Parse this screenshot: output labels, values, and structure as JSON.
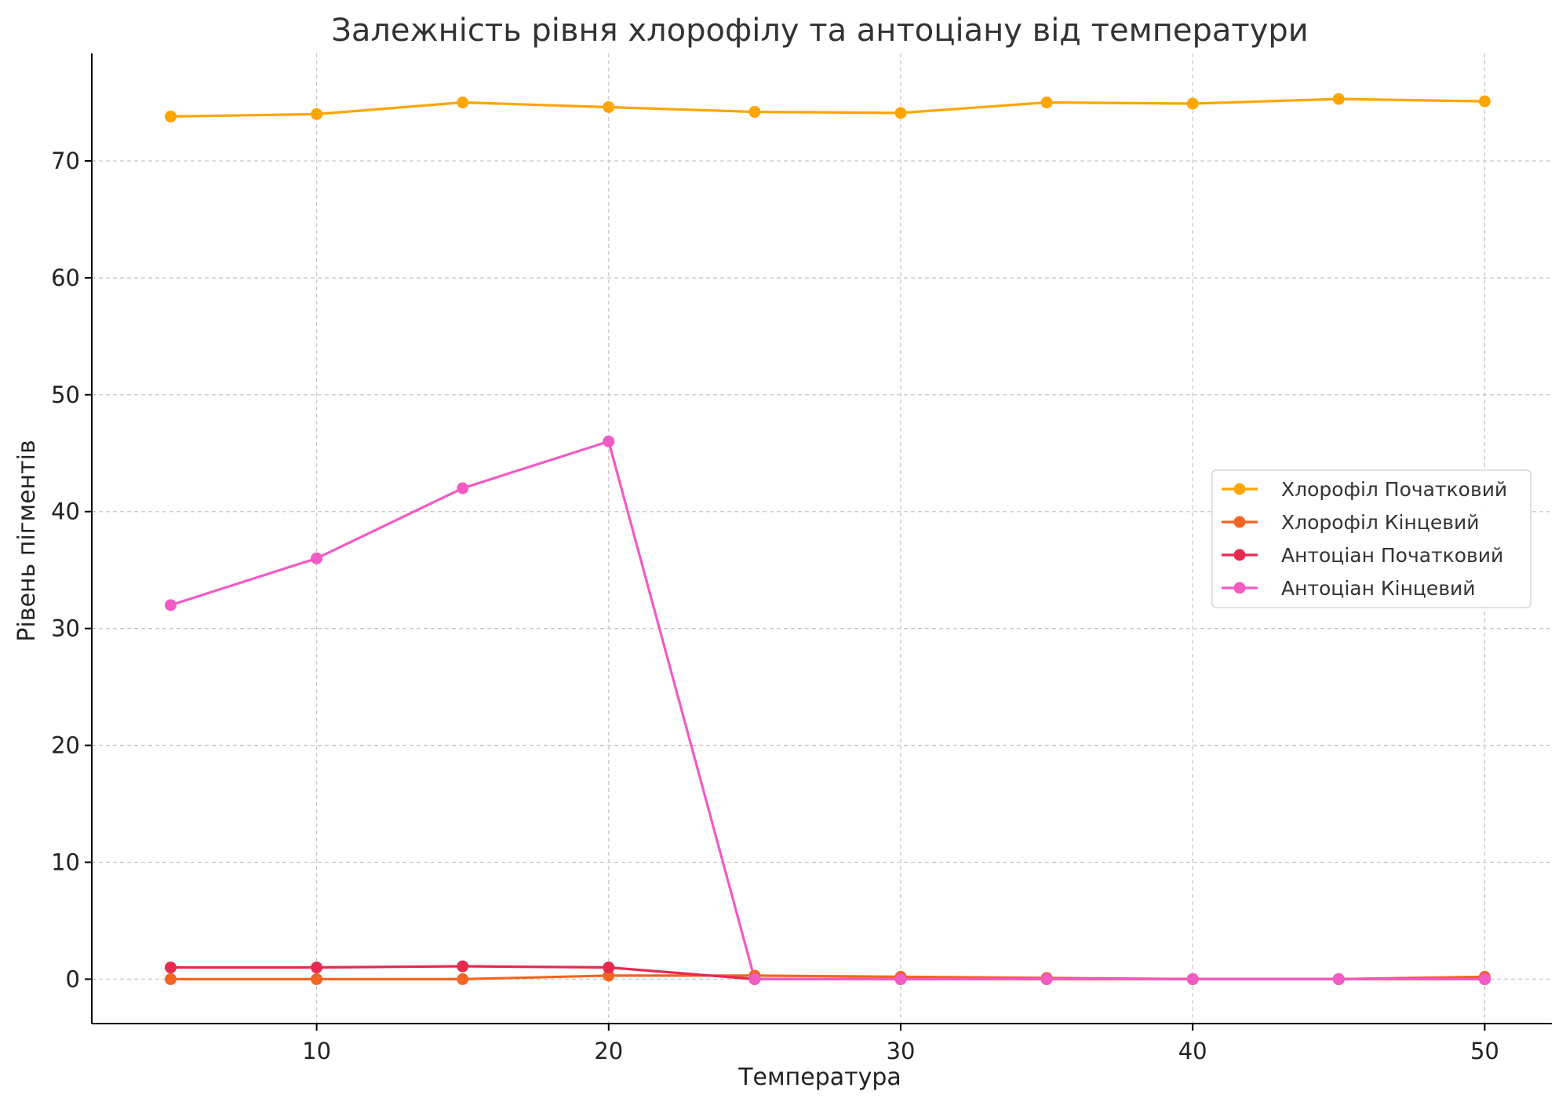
{
  "chart_data": {
    "type": "line",
    "title": "Залежність рівня хлорофілу та антоціану від температури",
    "xlabel": "Температура",
    "ylabel": "Рівень пігментів",
    "xlim": [
      2.3,
      52.3
    ],
    "ylim": [
      -3.8,
      79.2
    ],
    "x_ticks": [
      10,
      20,
      30,
      40,
      50
    ],
    "y_ticks": [
      0,
      10,
      20,
      30,
      40,
      50,
      60,
      70
    ],
    "grid": true,
    "legend_position": "center-right",
    "x": [
      5,
      10,
      15,
      20,
      25,
      30,
      35,
      40,
      45,
      50
    ],
    "series": [
      {
        "name": "Хлорофіл Початковий",
        "color": "#FFA500",
        "values": [
          73.8,
          74.0,
          75.0,
          74.6,
          74.2,
          74.1,
          75.0,
          74.9,
          75.3,
          75.1
        ]
      },
      {
        "name": "Хлорофіл Кінцевий",
        "color": "#F26522",
        "values": [
          0.0,
          0.0,
          0.0,
          0.3,
          0.3,
          0.2,
          0.1,
          0.0,
          0.0,
          0.2
        ]
      },
      {
        "name": "Антоціан Початковий",
        "color": "#E8294F",
        "values": [
          1.0,
          1.0,
          1.1,
          1.0,
          0.0,
          0.0,
          0.0,
          0.0,
          0.0,
          0.0
        ]
      },
      {
        "name": "Антоціан Кінцевий",
        "color": "#F25AC4",
        "values": [
          32.0,
          36.0,
          42.0,
          46.0,
          0.0,
          0.0,
          0.0,
          0.0,
          0.0,
          0.0
        ]
      }
    ]
  }
}
